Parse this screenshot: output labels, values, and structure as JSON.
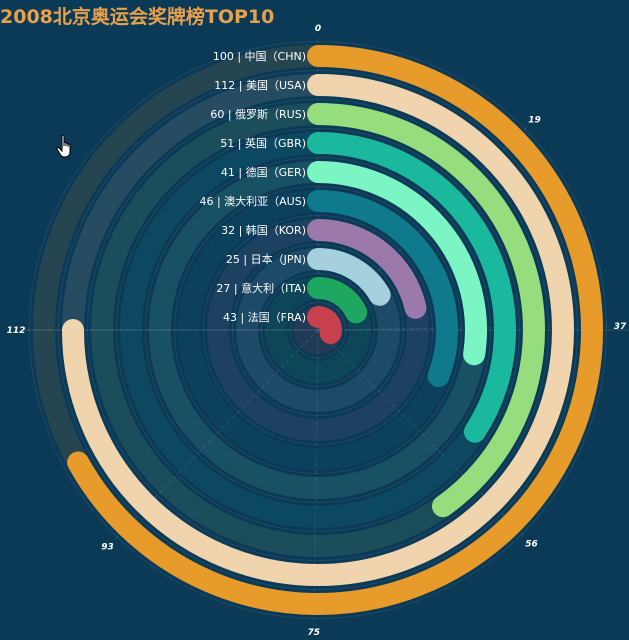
{
  "title": "2008北京奥运会奖牌榜TOP10",
  "chart_data": {
    "type": "polar-bar",
    "title": "2008北京奥运会奖牌榜TOP10",
    "axis_max": 112,
    "ticks": [
      {
        "value": 0,
        "label": "0"
      },
      {
        "value": 19,
        "label": "19"
      },
      {
        "value": 37,
        "label": "37"
      },
      {
        "value": 56,
        "label": "56"
      },
      {
        "value": 75,
        "label": "75"
      },
      {
        "value": 93,
        "label": "93"
      },
      {
        "value": 112,
        "label": "112"
      }
    ],
    "categories": [
      {
        "label": "100 | 中国（CHN)",
        "value": 100,
        "color": "#e69b2a"
      },
      {
        "label": "112 | 美国（USA)",
        "value": 112,
        "color": "#f0d4ad"
      },
      {
        "label": "60 | 俄罗斯（RUS)",
        "value": 60,
        "color": "#96dd7d"
      },
      {
        "label": "51 | 英国（GBR)",
        "value": 51,
        "color": "#1ab89c"
      },
      {
        "label": "41 | 德国（GER)",
        "value": 41,
        "color": "#7cf5c5"
      },
      {
        "label": "46 | 澳大利亚（AUS)",
        "value": 46,
        "color": "#0f7a8c"
      },
      {
        "label": "32 | 韩国（KOR)",
        "value": 32,
        "color": "#9b7aab"
      },
      {
        "label": "25 | 日本（JPN)",
        "value": 25,
        "color": "#a6d0dc"
      },
      {
        "label": "27 | 意大利（ITA)",
        "value": 27,
        "color": "#1fa760"
      },
      {
        "label": "43 | 法国（FRA)",
        "value": 43,
        "color": "#c8404e"
      }
    ]
  }
}
